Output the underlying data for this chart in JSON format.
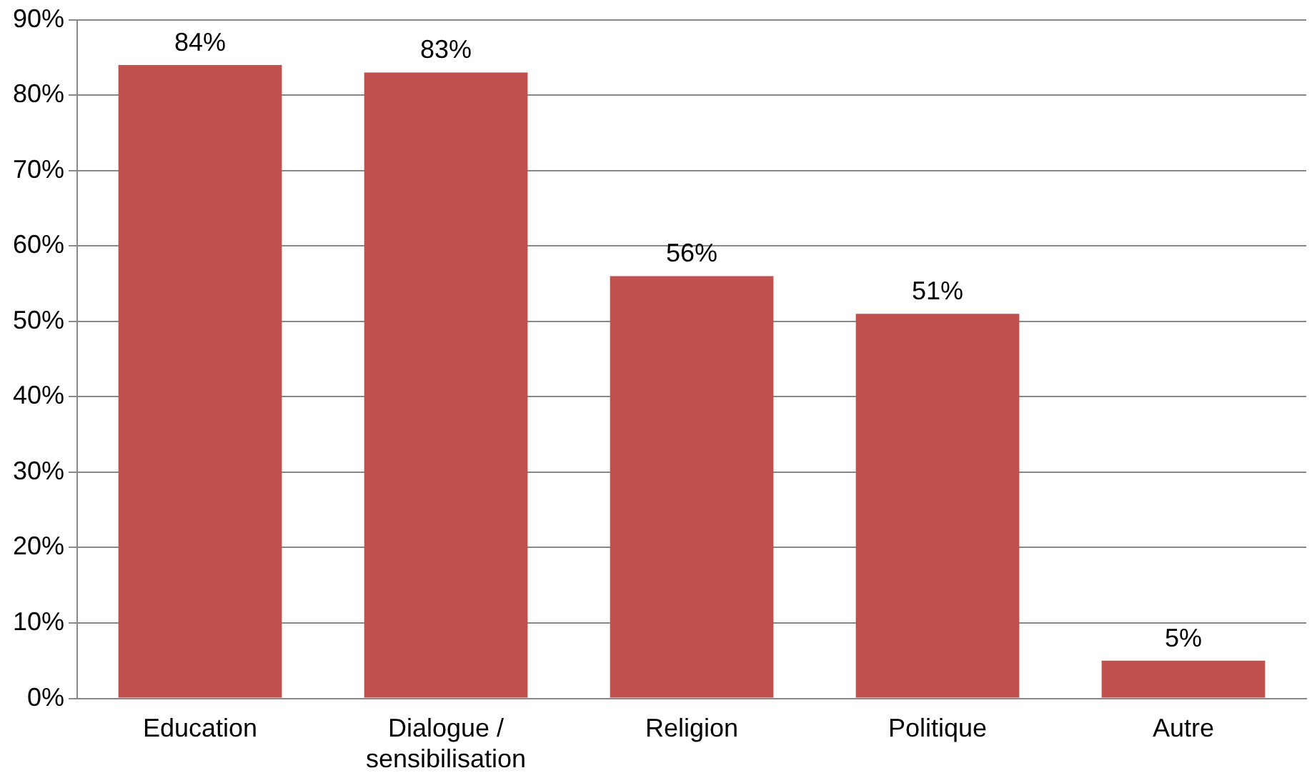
{
  "chart_data": {
    "type": "bar",
    "categories": [
      "Education",
      "Dialogue / sensibilisation",
      "Religion",
      "Politique",
      "Autre"
    ],
    "values": [
      84,
      83,
      56,
      51,
      5
    ],
    "value_labels": [
      "84%",
      "83%",
      "56%",
      "51%",
      "5%"
    ],
    "color": "#c0504d",
    "ylim": [
      0,
      90
    ],
    "yticks": [
      {
        "value": 0,
        "label": "0%"
      },
      {
        "value": 10,
        "label": "10%"
      },
      {
        "value": 20,
        "label": "20%"
      },
      {
        "value": 30,
        "label": "30%"
      },
      {
        "value": 40,
        "label": "40%"
      },
      {
        "value": 50,
        "label": "50%"
      },
      {
        "value": 60,
        "label": "60%"
      },
      {
        "value": 70,
        "label": "70%"
      },
      {
        "value": 80,
        "label": "80%"
      },
      {
        "value": 90,
        "label": "90%"
      }
    ],
    "grid": "y",
    "legend": false
  }
}
